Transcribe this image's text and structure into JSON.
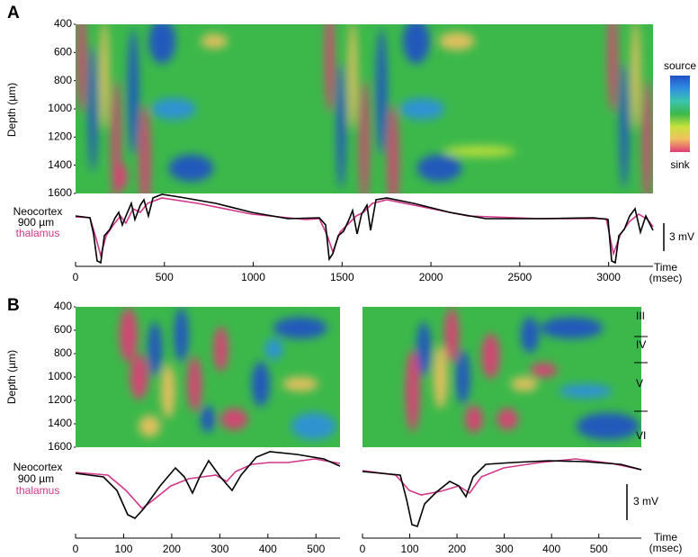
{
  "panel_labels": [
    "A",
    "B"
  ],
  "colorbar": {
    "top_label": "source",
    "bottom_label": "sink"
  },
  "chart_data": [
    {
      "type": "heatmap",
      "ylabel": "Depth (µm)",
      "ylim": [
        400,
        1600
      ],
      "yticks": [
        400,
        600,
        800,
        1000,
        1200,
        1400,
        1600
      ],
      "xlim": [
        0,
        3250
      ],
      "xticks": [
        0,
        500,
        1000,
        1500,
        2000,
        2500,
        3000
      ],
      "xlabel": "Time",
      "xlabel_unit": "(msec)",
      "trace_labels": [
        "Neocortex",
        "900 µm",
        "thalamus"
      ],
      "scale_bar": "3 mV"
    },
    {
      "type": "heatmap",
      "ylabel": "Depth (µm)",
      "ylim": [
        400,
        1600
      ],
      "yticks": [
        400,
        600,
        800,
        1000,
        1200,
        1400,
        1600
      ],
      "xlim": [
        0,
        550
      ],
      "xticks": [
        0,
        100,
        200,
        300,
        400,
        500
      ],
      "trace_labels": [
        "Neocortex",
        "900 µm",
        "thalamus"
      ]
    },
    {
      "type": "heatmap",
      "ylim": [
        400,
        1600
      ],
      "xlim": [
        0,
        590
      ],
      "xticks": [
        0,
        100,
        200,
        300,
        400,
        500
      ],
      "xlabel": "Time",
      "xlabel_unit": "(msec)",
      "layers": [
        "III",
        "IV",
        "V",
        "VI"
      ],
      "scale_bar": "3 mV"
    }
  ]
}
